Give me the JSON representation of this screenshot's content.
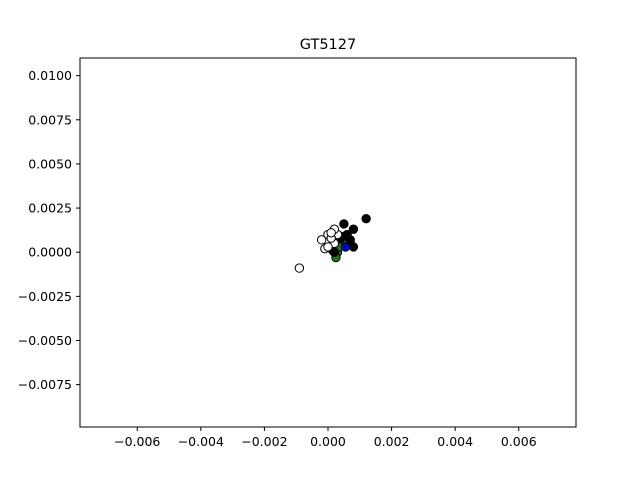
{
  "chart_data": {
    "type": "scatter",
    "title": "GT5127",
    "xlabel": "",
    "ylabel": "",
    "xlim": [
      -0.0078,
      0.0078
    ],
    "ylim": [
      -0.0099,
      0.011
    ],
    "grid": false,
    "x_ticks": [
      -0.006,
      -0.004,
      -0.002,
      0.0,
      0.002,
      0.004,
      0.006
    ],
    "x_tick_labels": [
      "−0.006",
      "−0.004",
      "−0.002",
      "0.000",
      "0.002",
      "0.004",
      "0.006"
    ],
    "y_ticks": [
      0.01,
      0.0075,
      0.005,
      0.0025,
      0.0,
      -0.0025,
      -0.005,
      -0.0075
    ],
    "y_tick_labels": [
      "0.0100",
      "0.0075",
      "0.0050",
      "0.0025",
      "0.0000",
      "−0.0025",
      "−0.0050",
      "−0.0075"
    ],
    "series": [
      {
        "color": "#1a7a1a",
        "edge": "#000000",
        "points": [
          [
            0.0002,
            0.0002
          ],
          [
            0.0003,
            0.0
          ],
          [
            0.00025,
            -0.0003
          ],
          [
            0.00045,
            0.0006
          ],
          [
            0.0005,
            0.0004
          ],
          [
            0.00015,
            0.0001
          ],
          [
            0.0004,
            0.0009
          ],
          [
            0.00035,
            0.0003
          ],
          [
            0.0006,
            0.0005
          ]
        ]
      },
      {
        "color": "#000000",
        "edge": "#000000",
        "points": [
          [
            0.0005,
            0.0016
          ],
          [
            0.0012,
            0.0019
          ],
          [
            0.0008,
            0.0013
          ],
          [
            0.0008,
            0.0003
          ],
          [
            0.0007,
            0.0007
          ],
          [
            0.0006,
            0.001
          ],
          [
            0.0004,
            0.0008
          ],
          [
            0.0007,
            0.0005
          ],
          [
            0.0002,
            0.0
          ]
        ]
      },
      {
        "color": "#ffffff",
        "edge": "#000000",
        "points": [
          [
            -0.0009,
            -0.0009
          ],
          [
            0.0,
            0.0006
          ],
          [
            -0.0002,
            0.0007
          ],
          [
            0.0,
            0.001
          ],
          [
            0.0002,
            0.0005
          ],
          [
            0.0003,
            0.001
          ],
          [
            -0.0001,
            0.0002
          ],
          [
            0.0001,
            0.0008
          ],
          [
            0.0002,
            0.0013
          ],
          [
            0.0001,
            0.0011
          ],
          [
            0.0,
            0.0003
          ]
        ]
      },
      {
        "color": "#0000cc",
        "edge": "#000000",
        "points": [
          [
            0.00055,
            0.0003
          ]
        ]
      }
    ]
  }
}
